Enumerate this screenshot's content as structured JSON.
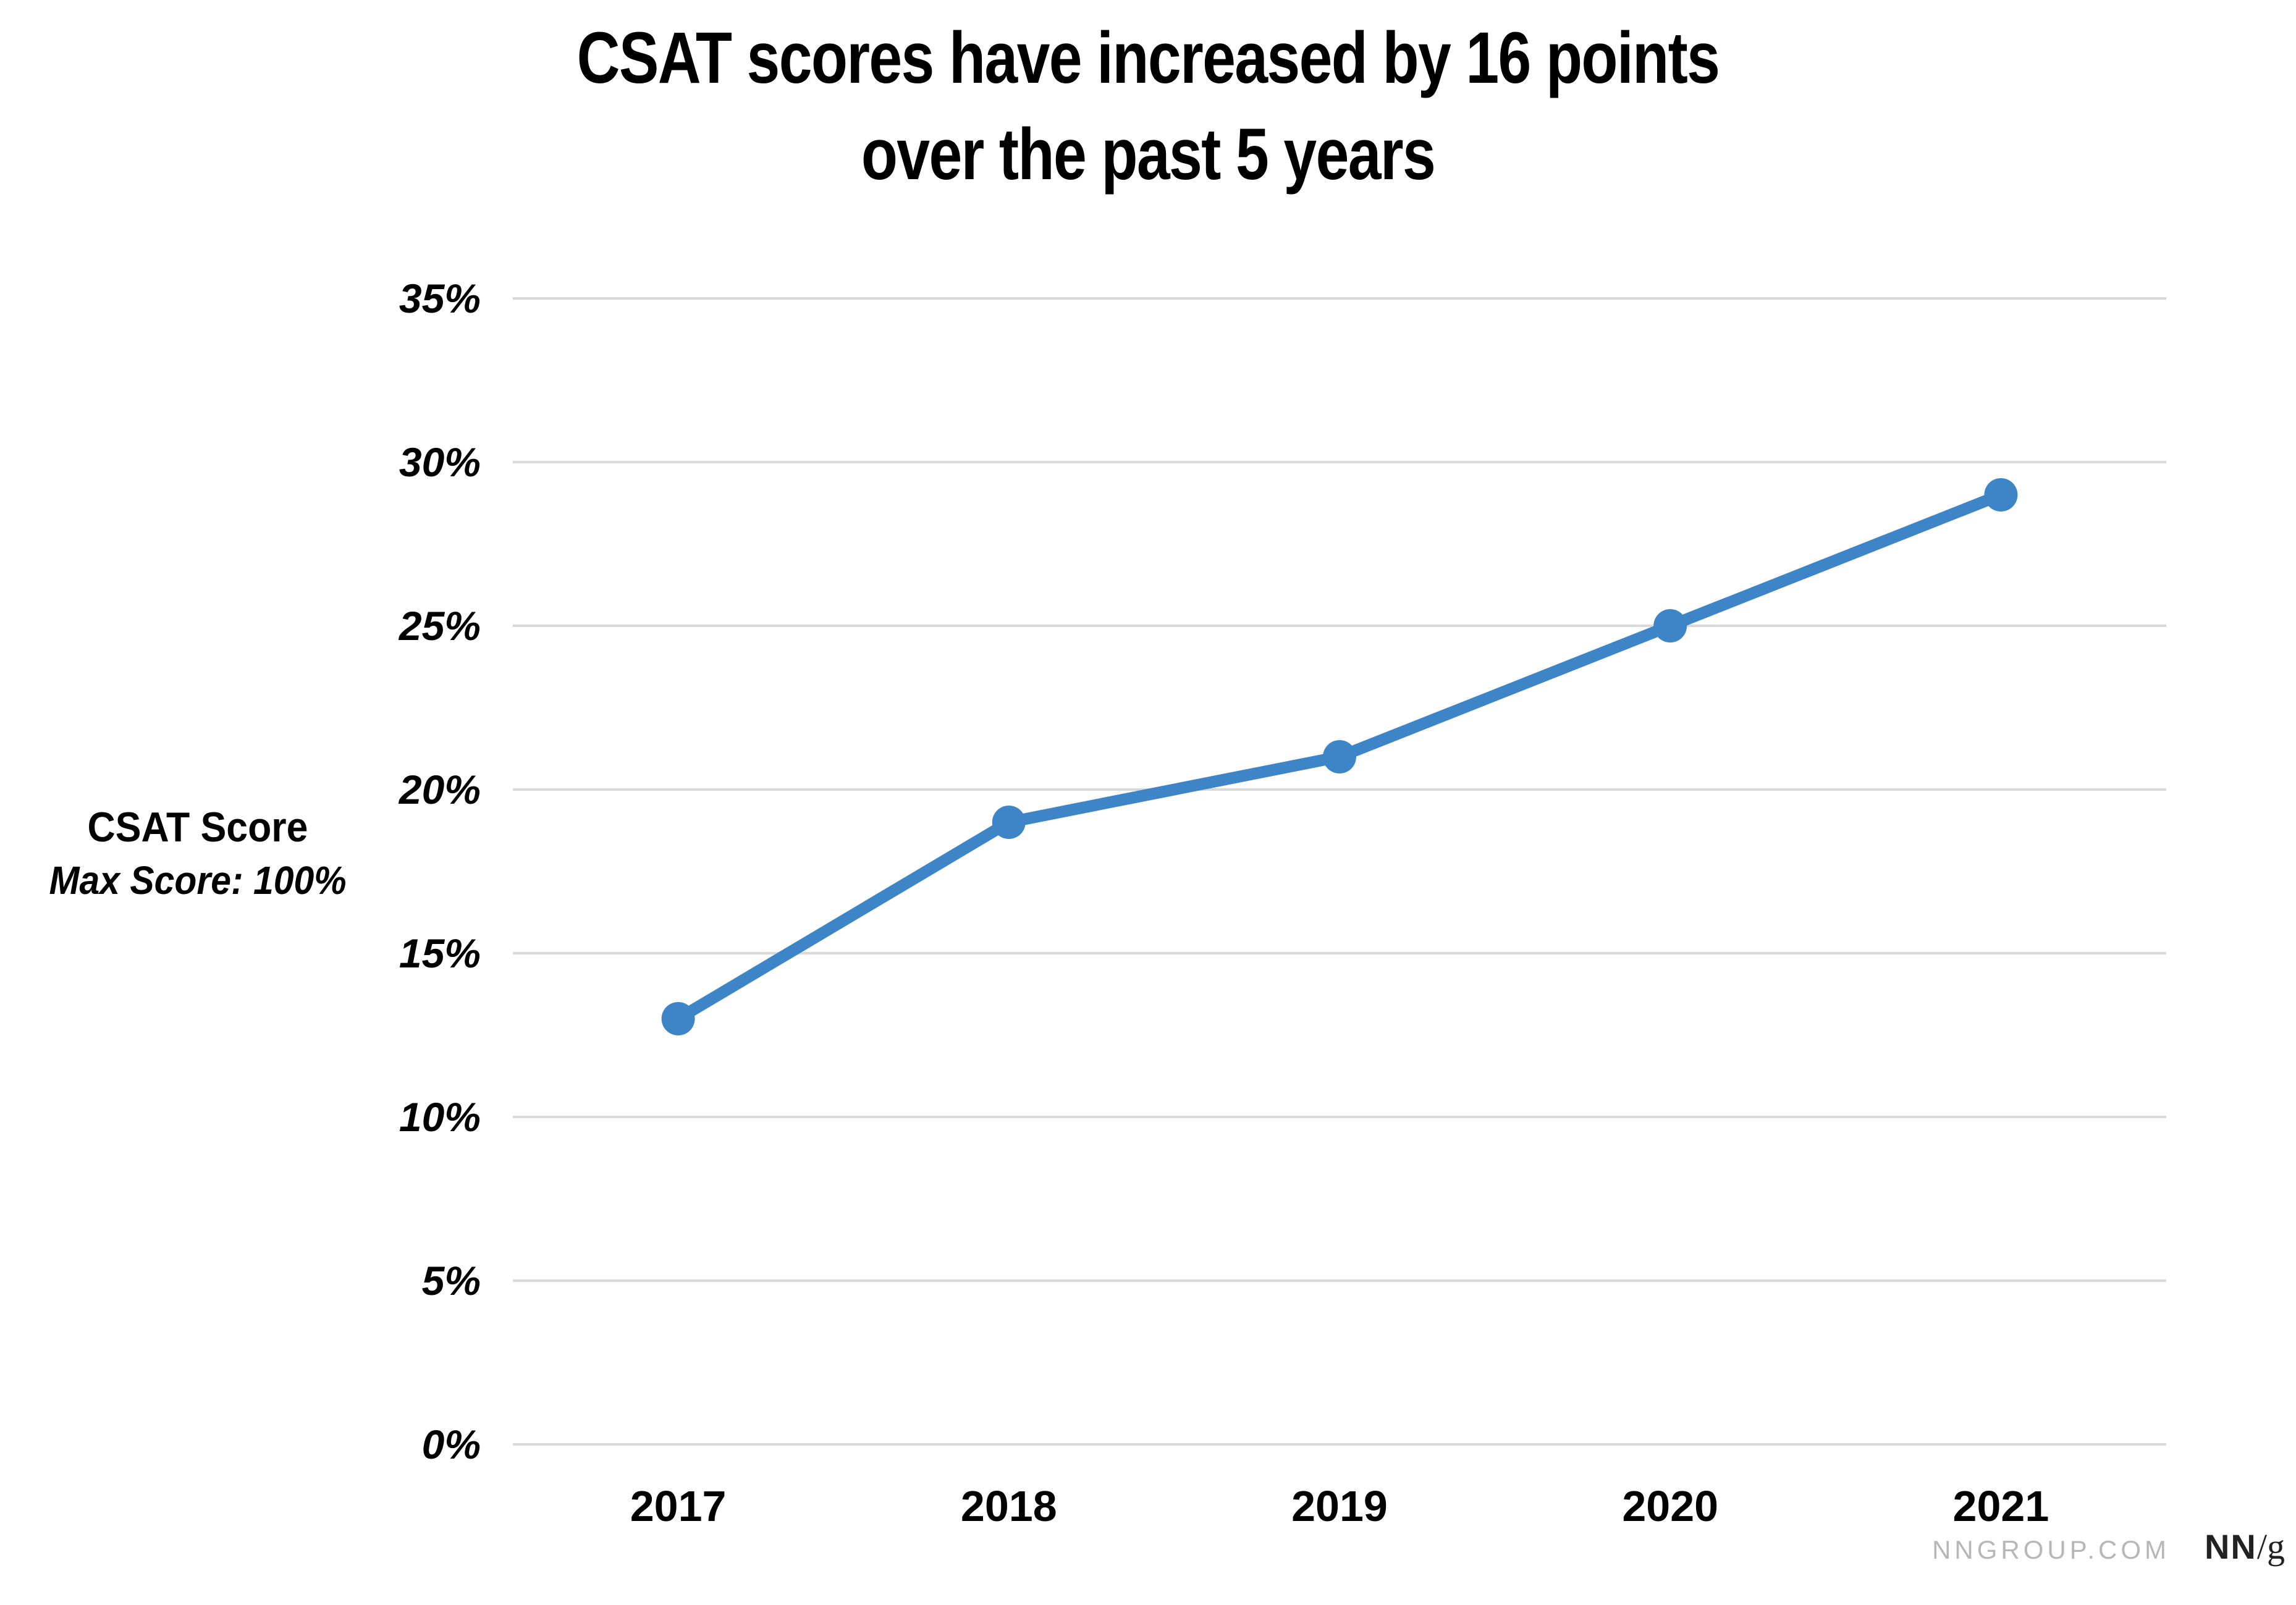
{
  "title": {
    "line1": "CSAT scores have increased by 16 points",
    "line2": "over the past 5 years"
  },
  "y_axis_title": {
    "line1": "CSAT Score",
    "line2": "Max Score: 100%"
  },
  "footer": {
    "site": "NNGROUP.COM",
    "logo_nn": "NN",
    "logo_slash_g": "/g"
  },
  "colors": {
    "line": "#3d85c6",
    "marker": "#3d85c6",
    "gridline": "#d9d9d9",
    "text": "#000000",
    "footer_gray": "#b7b7b7"
  },
  "chart_data": {
    "type": "line",
    "title": "CSAT scores have increased by 16 points over the past 5 years",
    "xlabel": "",
    "ylabel": "CSAT Score (Max Score: 100%)",
    "categories": [
      "2017",
      "2018",
      "2019",
      "2020",
      "2021"
    ],
    "series": [
      {
        "name": "CSAT Score",
        "values": [
          13,
          19,
          21,
          25,
          29
        ]
      }
    ],
    "ylim": [
      0,
      35
    ],
    "yticks": [
      0,
      5,
      10,
      15,
      20,
      25,
      30,
      35
    ],
    "ytick_suffix": "%",
    "grid": true,
    "legend": false,
    "marker": "circle"
  }
}
